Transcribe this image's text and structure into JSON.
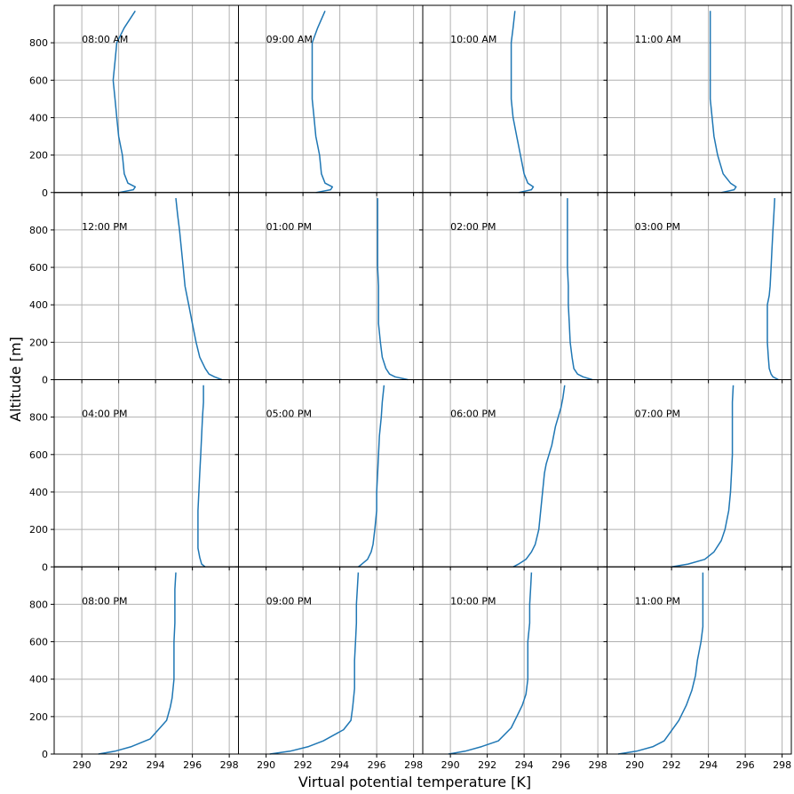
{
  "chart_data": {
    "type": "line",
    "xlabel": "Virtual potential temperature [K]",
    "ylabel": "Altitude [m]",
    "xlim": [
      288.5,
      298.5
    ],
    "ylim": [
      0,
      1000
    ],
    "x_ticks": [
      "290",
      "292",
      "294",
      "296",
      "298"
    ],
    "y_ticks": [
      "0",
      "200",
      "400",
      "600",
      "800"
    ],
    "grid": true,
    "series_color": "#1f77b4",
    "layout": "4x4 small multiples, shared axes",
    "panels": [
      {
        "label": "08:00 AM",
        "points": [
          [
            292.0,
            0
          ],
          [
            292.8,
            15
          ],
          [
            292.9,
            30
          ],
          [
            292.5,
            50
          ],
          [
            292.3,
            100
          ],
          [
            292.2,
            200
          ],
          [
            292.0,
            300
          ],
          [
            291.9,
            400
          ],
          [
            291.8,
            500
          ],
          [
            291.7,
            600
          ],
          [
            291.8,
            700
          ],
          [
            291.9,
            800
          ],
          [
            292.3,
            880
          ],
          [
            292.9,
            970
          ]
        ]
      },
      {
        "label": "09:00 AM",
        "points": [
          [
            292.7,
            0
          ],
          [
            293.5,
            15
          ],
          [
            293.6,
            30
          ],
          [
            293.2,
            50
          ],
          [
            293.0,
            100
          ],
          [
            292.9,
            200
          ],
          [
            292.7,
            300
          ],
          [
            292.6,
            400
          ],
          [
            292.5,
            500
          ],
          [
            292.5,
            600
          ],
          [
            292.5,
            700
          ],
          [
            292.5,
            800
          ],
          [
            292.8,
            880
          ],
          [
            293.2,
            970
          ]
        ]
      },
      {
        "label": "10:00 AM",
        "points": [
          [
            293.7,
            0
          ],
          [
            294.4,
            15
          ],
          [
            294.5,
            30
          ],
          [
            294.2,
            50
          ],
          [
            294.0,
            100
          ],
          [
            293.8,
            200
          ],
          [
            293.6,
            300
          ],
          [
            293.4,
            400
          ],
          [
            293.3,
            500
          ],
          [
            293.3,
            600
          ],
          [
            293.3,
            700
          ],
          [
            293.3,
            800
          ],
          [
            293.4,
            880
          ],
          [
            293.5,
            970
          ]
        ]
      },
      {
        "label": "11:00 AM",
        "points": [
          [
            294.7,
            0
          ],
          [
            295.4,
            15
          ],
          [
            295.5,
            30
          ],
          [
            295.2,
            50
          ],
          [
            294.8,
            100
          ],
          [
            294.5,
            200
          ],
          [
            294.3,
            300
          ],
          [
            294.2,
            400
          ],
          [
            294.1,
            500
          ],
          [
            294.1,
            600
          ],
          [
            294.1,
            700
          ],
          [
            294.1,
            800
          ],
          [
            294.1,
            880
          ],
          [
            294.1,
            970
          ]
        ]
      },
      {
        "label": "12:00 PM",
        "points": [
          [
            297.6,
            0
          ],
          [
            297.2,
            15
          ],
          [
            296.9,
            30
          ],
          [
            296.7,
            60
          ],
          [
            296.4,
            120
          ],
          [
            296.2,
            200
          ],
          [
            296.0,
            300
          ],
          [
            295.8,
            400
          ],
          [
            295.6,
            500
          ],
          [
            295.5,
            600
          ],
          [
            295.4,
            700
          ],
          [
            295.3,
            800
          ],
          [
            295.2,
            880
          ],
          [
            295.1,
            970
          ]
        ]
      },
      {
        "label": "01:00 PM",
        "points": [
          [
            297.7,
            0
          ],
          [
            297.0,
            15
          ],
          [
            296.7,
            30
          ],
          [
            296.5,
            60
          ],
          [
            296.3,
            120
          ],
          [
            296.2,
            200
          ],
          [
            296.1,
            300
          ],
          [
            296.1,
            400
          ],
          [
            296.1,
            500
          ],
          [
            296.05,
            600
          ],
          [
            296.05,
            700
          ],
          [
            296.05,
            800
          ],
          [
            296.05,
            880
          ],
          [
            296.05,
            970
          ]
        ]
      },
      {
        "label": "02:00 PM",
        "points": [
          [
            297.7,
            0
          ],
          [
            297.2,
            15
          ],
          [
            296.9,
            30
          ],
          [
            296.7,
            60
          ],
          [
            296.6,
            120
          ],
          [
            296.5,
            200
          ],
          [
            296.45,
            300
          ],
          [
            296.4,
            400
          ],
          [
            296.4,
            500
          ],
          [
            296.35,
            600
          ],
          [
            296.35,
            700
          ],
          [
            296.35,
            800
          ],
          [
            296.35,
            880
          ],
          [
            296.35,
            970
          ]
        ]
      },
      {
        "label": "03:00 PM",
        "points": [
          [
            297.8,
            0
          ],
          [
            297.5,
            15
          ],
          [
            297.4,
            30
          ],
          [
            297.3,
            60
          ],
          [
            297.25,
            120
          ],
          [
            297.2,
            200
          ],
          [
            297.2,
            300
          ],
          [
            297.2,
            400
          ],
          [
            297.3,
            450
          ],
          [
            297.35,
            500
          ],
          [
            297.4,
            600
          ],
          [
            297.45,
            700
          ],
          [
            297.5,
            800
          ],
          [
            297.55,
            880
          ],
          [
            297.6,
            970
          ]
        ]
      },
      {
        "label": "04:00 PM",
        "points": [
          [
            296.7,
            0
          ],
          [
            296.5,
            15
          ],
          [
            296.4,
            50
          ],
          [
            296.3,
            100
          ],
          [
            296.3,
            200
          ],
          [
            296.3,
            300
          ],
          [
            296.35,
            400
          ],
          [
            296.4,
            500
          ],
          [
            296.45,
            600
          ],
          [
            296.5,
            700
          ],
          [
            296.55,
            800
          ],
          [
            296.6,
            880
          ],
          [
            296.6,
            970
          ]
        ]
      },
      {
        "label": "05:00 PM",
        "points": [
          [
            295.0,
            0
          ],
          [
            295.2,
            15
          ],
          [
            295.5,
            40
          ],
          [
            295.7,
            80
          ],
          [
            295.8,
            120
          ],
          [
            295.9,
            200
          ],
          [
            296.0,
            300
          ],
          [
            296.0,
            400
          ],
          [
            296.05,
            500
          ],
          [
            296.1,
            600
          ],
          [
            296.15,
            700
          ],
          [
            296.25,
            800
          ],
          [
            296.3,
            880
          ],
          [
            296.4,
            970
          ]
        ]
      },
      {
        "label": "06:00 PM",
        "points": [
          [
            293.4,
            0
          ],
          [
            293.7,
            15
          ],
          [
            294.1,
            40
          ],
          [
            294.4,
            80
          ],
          [
            294.6,
            120
          ],
          [
            294.8,
            200
          ],
          [
            294.9,
            300
          ],
          [
            295.0,
            400
          ],
          [
            295.1,
            500
          ],
          [
            295.2,
            550
          ],
          [
            295.5,
            650
          ],
          [
            295.7,
            750
          ],
          [
            296.0,
            850
          ],
          [
            296.1,
            900
          ],
          [
            296.2,
            970
          ]
        ]
      },
      {
        "label": "07:00 PM",
        "points": [
          [
            292.0,
            0
          ],
          [
            292.9,
            15
          ],
          [
            293.8,
            40
          ],
          [
            294.3,
            80
          ],
          [
            294.7,
            140
          ],
          [
            294.9,
            200
          ],
          [
            295.1,
            300
          ],
          [
            295.2,
            400
          ],
          [
            295.25,
            500
          ],
          [
            295.3,
            600
          ],
          [
            295.3,
            700
          ],
          [
            295.3,
            800
          ],
          [
            295.3,
            880
          ],
          [
            295.35,
            970
          ]
        ]
      },
      {
        "label": "08:00 PM",
        "points": [
          [
            290.9,
            0
          ],
          [
            291.8,
            15
          ],
          [
            292.7,
            40
          ],
          [
            293.7,
            80
          ],
          [
            294.6,
            180
          ],
          [
            294.8,
            250
          ],
          [
            294.9,
            300
          ],
          [
            295.0,
            400
          ],
          [
            295.0,
            500
          ],
          [
            295.0,
            600
          ],
          [
            295.05,
            700
          ],
          [
            295.05,
            800
          ],
          [
            295.05,
            880
          ],
          [
            295.1,
            970
          ]
        ]
      },
      {
        "label": "09:00 PM",
        "points": [
          [
            290.2,
            0
          ],
          [
            291.3,
            15
          ],
          [
            292.3,
            40
          ],
          [
            293.1,
            70
          ],
          [
            294.2,
            130
          ],
          [
            294.6,
            180
          ],
          [
            294.7,
            250
          ],
          [
            294.8,
            350
          ],
          [
            294.8,
            400
          ],
          [
            294.8,
            500
          ],
          [
            294.85,
            600
          ],
          [
            294.9,
            700
          ],
          [
            294.9,
            800
          ],
          [
            294.95,
            880
          ],
          [
            295.0,
            970
          ]
        ]
      },
      {
        "label": "10:00 PM",
        "points": [
          [
            289.9,
            0
          ],
          [
            290.8,
            15
          ],
          [
            291.7,
            40
          ],
          [
            292.6,
            70
          ],
          [
            293.3,
            140
          ],
          [
            293.6,
            200
          ],
          [
            293.9,
            260
          ],
          [
            294.1,
            320
          ],
          [
            294.2,
            400
          ],
          [
            294.2,
            440
          ],
          [
            294.2,
            500
          ],
          [
            294.2,
            600
          ],
          [
            294.3,
            700
          ],
          [
            294.3,
            800
          ],
          [
            294.35,
            880
          ],
          [
            294.4,
            970
          ]
        ]
      },
      {
        "label": "11:00 PM",
        "points": [
          [
            289.1,
            0
          ],
          [
            290.1,
            15
          ],
          [
            291.0,
            40
          ],
          [
            291.6,
            70
          ],
          [
            292.4,
            180
          ],
          [
            292.8,
            260
          ],
          [
            293.1,
            340
          ],
          [
            293.3,
            420
          ],
          [
            293.4,
            500
          ],
          [
            293.6,
            600
          ],
          [
            293.7,
            680
          ],
          [
            293.7,
            750
          ],
          [
            293.7,
            850
          ],
          [
            293.7,
            970
          ]
        ]
      }
    ]
  }
}
